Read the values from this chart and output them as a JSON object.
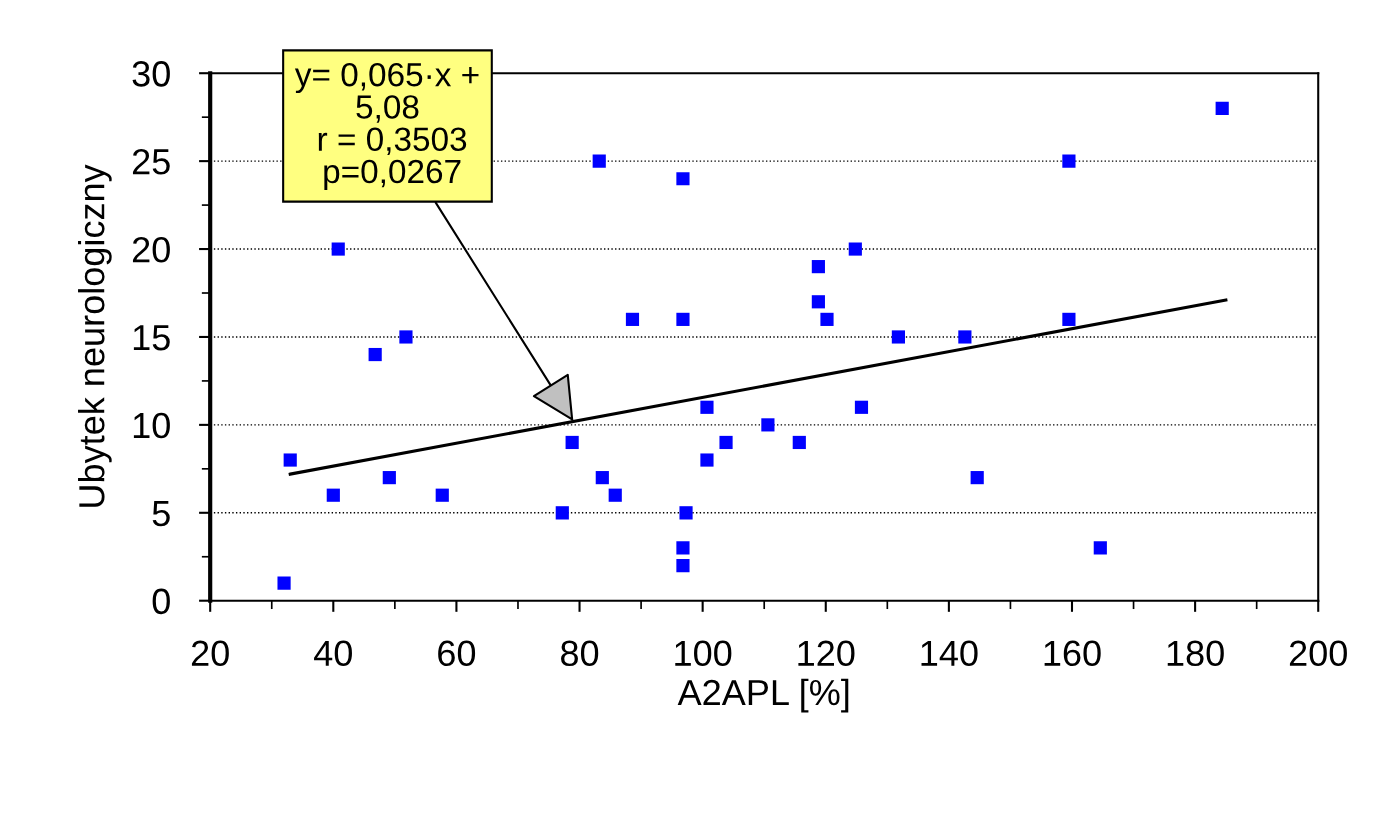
{
  "chart_data": {
    "type": "scatter",
    "xlabel": "A2APL [%]",
    "ylabel": "Ubytek neurologiczny",
    "xlim": [
      20,
      200
    ],
    "xticks": [
      20,
      40,
      60,
      80,
      100,
      120,
      140,
      160,
      180,
      200
    ],
    "ylim": [
      0,
      30
    ],
    "yticks": [
      0,
      5,
      10,
      15,
      20,
      25,
      30
    ],
    "grid": "y",
    "legend": false,
    "series": [
      {
        "color": "#0000ff",
        "marker": "square",
        "x": [
          32.0,
          33.0,
          40.0,
          40.8,
          46.8,
          49.1,
          51.8,
          57.7,
          77.2,
          78.8,
          83.2,
          83.7,
          85.8,
          88.6,
          96.8,
          96.8,
          96.8,
          96.8,
          97.3,
          100.7,
          100.7,
          103.8,
          110.6,
          115.7,
          118.8,
          118.8,
          120.2,
          124.8,
          125.8,
          131.8,
          142.6,
          144.6,
          159.5,
          159.5,
          164.6,
          184.4
        ],
        "values": [
          1,
          8,
          6,
          20,
          14,
          7,
          15,
          6,
          5,
          9,
          25,
          7,
          6,
          16,
          24,
          16,
          3,
          2,
          5,
          11,
          8,
          9,
          10,
          9,
          19,
          17,
          16,
          20,
          11,
          15,
          15,
          7,
          25,
          16,
          3,
          28
        ]
      },
      {
        "type": "line",
        "color": "#000000",
        "marker": "none",
        "line_style": "solid",
        "x": [
          33,
          185
        ],
        "values": [
          7.2,
          17.1
        ]
      }
    ],
    "annotations": [
      {
        "text": "y= 0,065·x +\n5,08\n r = 0,3503\n p=0,0267",
        "x": 79,
        "y": 10.2
      }
    ]
  }
}
